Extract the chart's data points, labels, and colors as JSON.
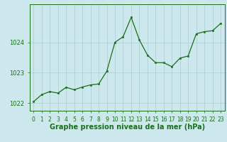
{
  "x": [
    0,
    1,
    2,
    3,
    4,
    5,
    6,
    7,
    8,
    9,
    10,
    11,
    12,
    13,
    14,
    15,
    16,
    17,
    18,
    19,
    20,
    21,
    22,
    23
  ],
  "y": [
    1022.05,
    1022.28,
    1022.38,
    1022.33,
    1022.52,
    1022.44,
    1022.53,
    1022.6,
    1022.63,
    1023.05,
    1024.0,
    1024.18,
    1024.82,
    1024.08,
    1023.58,
    1023.33,
    1023.33,
    1023.2,
    1023.48,
    1023.55,
    1024.28,
    1024.35,
    1024.38,
    1024.62
  ],
  "ylim": [
    1021.75,
    1025.25
  ],
  "yticks": [
    1022,
    1023,
    1024
  ],
  "ytick_labels": [
    "1022",
    "1023",
    "1024"
  ],
  "xticks": [
    0,
    1,
    2,
    3,
    4,
    5,
    6,
    7,
    8,
    9,
    10,
    11,
    12,
    13,
    14,
    15,
    16,
    17,
    18,
    19,
    20,
    21,
    22,
    23
  ],
  "xlabel": "Graphe pression niveau de la mer (hPa)",
  "line_color": "#1a6e1a",
  "marker_color": "#1a6e1a",
  "bg_color": "#cce8ec",
  "grid_color": "#a8cdd4",
  "axis_color": "#1a6e1a",
  "label_color": "#1a6e1a",
  "tick_label_color": "#1a6e1a",
  "xlabel_fontsize": 7.0,
  "tick_fontsize": 6.0,
  "linewidth": 0.9,
  "markersize": 2.0
}
